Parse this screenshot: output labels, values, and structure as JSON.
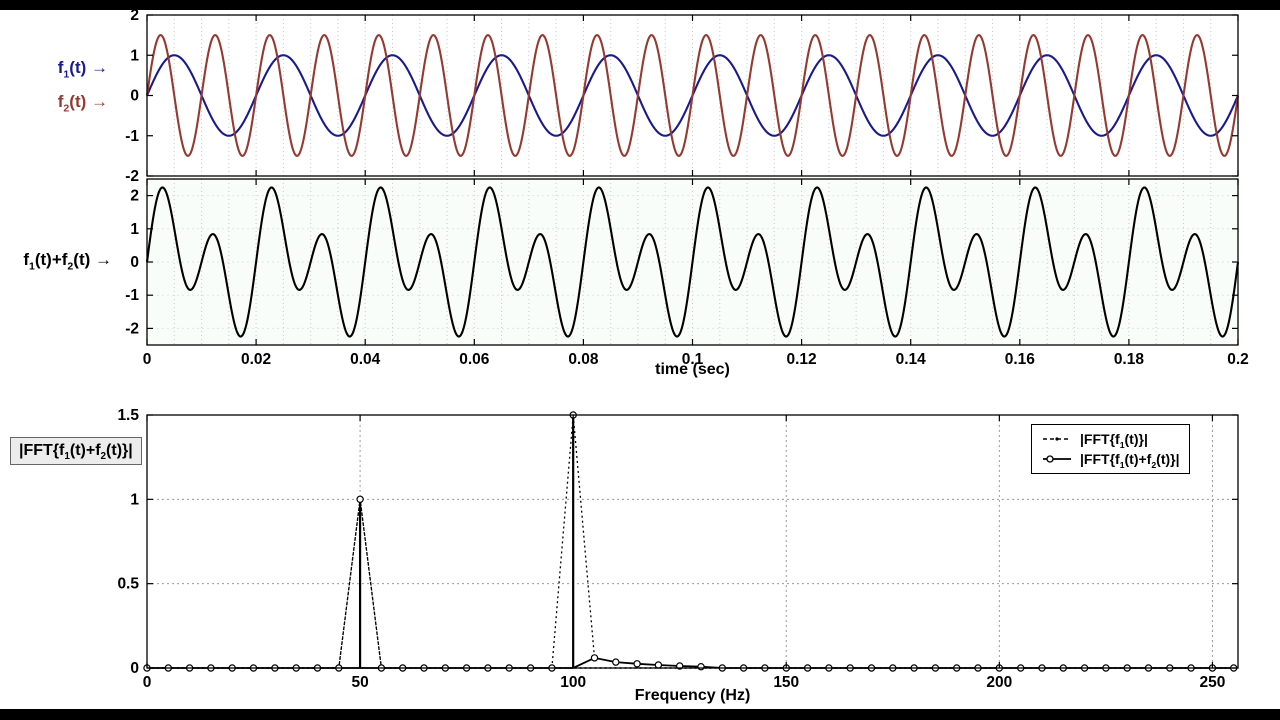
{
  "colors": {
    "f1": "#1a1a8c",
    "f2": "#943a30",
    "sum": "#000000",
    "axis": "#000000",
    "grid_minor": "#c9c9c9",
    "grid_major": "#999999",
    "grid_green": "#d8ecd8",
    "letterbox": "#000000"
  },
  "rich_labels": {
    "f1": [
      "f",
      {
        "sub": "1"
      },
      "(t) →"
    ],
    "f2": [
      "f",
      {
        "sub": "2"
      },
      "(t) →"
    ],
    "sum": [
      "f",
      {
        "sub": "1"
      },
      "(t)+f",
      {
        "sub": "2"
      },
      "(t) →"
    ],
    "fft_title": [
      "|FFT{f",
      {
        "sub": "1"
      },
      "(t)+f",
      {
        "sub": "2"
      },
      "(t)}|"
    ],
    "legend_f1": [
      "|FFT{f",
      {
        "sub": "1"
      },
      "(t)}|"
    ],
    "legend_sum": [
      "|FFT{f",
      {
        "sub": "1"
      },
      "(t)+f",
      {
        "sub": "2"
      },
      "(t)}|"
    ]
  },
  "chart_data": [
    {
      "name": "input-signals",
      "type": "line",
      "xlim": [
        0,
        0.2
      ],
      "ylim": [
        -2,
        2
      ],
      "xticks": [
        0,
        0.02,
        0.04,
        0.06,
        0.08,
        0.1,
        0.12,
        0.14,
        0.16,
        0.18,
        0.2
      ],
      "show_xtick_labels": false,
      "yticks": [
        -2,
        -1,
        0,
        1,
        2
      ],
      "grid": {
        "x_step": 0.005,
        "color": "#c9c9c9"
      },
      "series": [
        {
          "name": "f1(t)",
          "waveform": "sine",
          "amplitude": 1,
          "frequency_hz": 50,
          "phase_deg": 0,
          "color": "#1a1a8c"
        },
        {
          "name": "f2(t)",
          "waveform": "sine",
          "amplitude": 1.5,
          "frequency_hz": 100,
          "phase_deg": 0,
          "color": "#943a30"
        }
      ]
    },
    {
      "name": "sum-signal",
      "type": "line",
      "xlabel": "time (sec)",
      "xlim": [
        0,
        0.2
      ],
      "ylim": [
        -2.5,
        2.5
      ],
      "xticks": [
        0,
        0.02,
        0.04,
        0.06,
        0.08,
        0.1,
        0.12,
        0.14,
        0.16,
        0.18,
        0.2
      ],
      "show_xtick_labels": true,
      "yticks": [
        -2,
        -1,
        0,
        1,
        2
      ],
      "bg": "#f9fdf9",
      "grid": {
        "x_step": 0.005,
        "color": "#c9c9c9",
        "y_on_ticks": true,
        "y_color": "#d8ecd8"
      },
      "series": [
        {
          "name": "f1(t)+f2(t)",
          "color": "#000000",
          "components": [
            {
              "amplitude": 1,
              "frequency_hz": 50
            },
            {
              "amplitude": 1.5,
              "frequency_hz": 100
            }
          ]
        }
      ]
    },
    {
      "name": "fft-magnitude",
      "type": "line",
      "xlabel": "Frequency (Hz)",
      "xlim": [
        0,
        256
      ],
      "ylim": [
        0,
        1.5
      ],
      "xticks": [
        0,
        50,
        100,
        150,
        200,
        250
      ],
      "show_xtick_labels": true,
      "yticks": [
        0,
        0.5,
        1,
        1.5
      ],
      "grid": {
        "x_on_ticks": true,
        "y_on_ticks": true,
        "color": "#9a9a9a",
        "y_color": "#9a9a9a"
      },
      "bin_step_hz": 5,
      "series": [
        {
          "name": "|FFT{f1(t)}|",
          "style": "dotted",
          "color": "#000000",
          "peaks": [
            {
              "frequency_hz": 50,
              "magnitude": 1
            }
          ]
        },
        {
          "name": "|FFT{f1(t)+f2(t)}|",
          "style": "solid-with-markers",
          "color": "#000000",
          "peaks": [
            {
              "frequency_hz": 50,
              "magnitude": 1
            },
            {
              "frequency_hz": 100,
              "magnitude": 1.5
            }
          ],
          "sidelobes": [
            {
              "frequency_hz": 105,
              "magnitude": 0.06
            },
            {
              "frequency_hz": 110,
              "magnitude": 0.035
            },
            {
              "frequency_hz": 115,
              "magnitude": 0.025
            },
            {
              "frequency_hz": 120,
              "magnitude": 0.018
            },
            {
              "frequency_hz": 125,
              "magnitude": 0.012
            },
            {
              "frequency_hz": 130,
              "magnitude": 0.008
            }
          ]
        }
      ]
    }
  ]
}
